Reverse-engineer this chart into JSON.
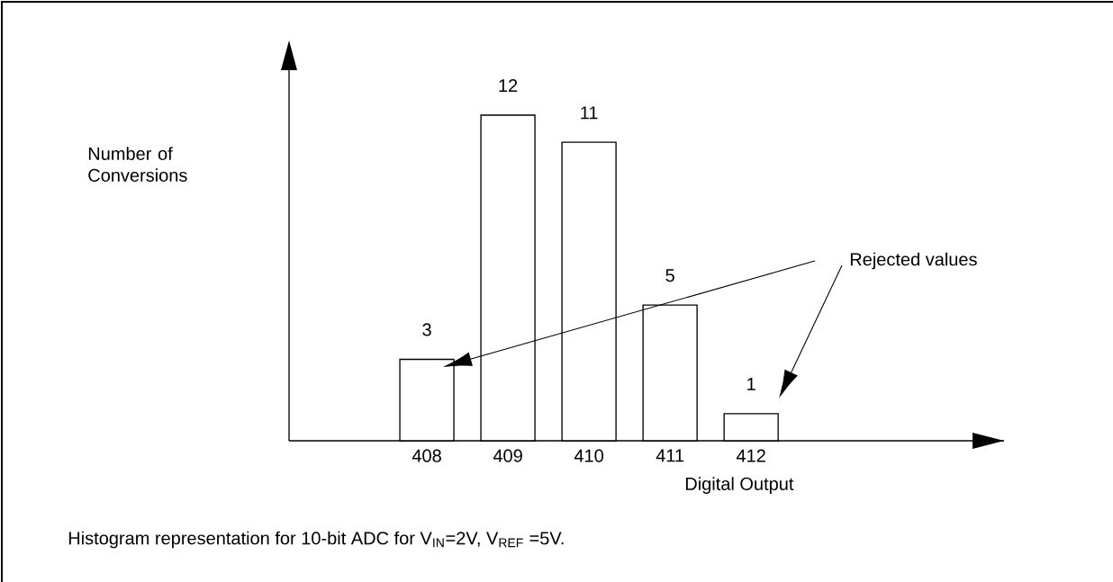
{
  "chart_data": {
    "type": "bar",
    "categories": [
      "408",
      "409",
      "410",
      "411",
      "412"
    ],
    "values": [
      3,
      12,
      11,
      5,
      1
    ],
    "color": "#ffffff",
    "data_labels": true,
    "tick_labels": "x",
    "xlabel": "Digital Output",
    "annotations": [
      "Rejected values",
      "Number of Conversions",
      "Histogram representation for 10-bit ADC for V$_{IN}$=2V, V$_{REF}$ =5V."
    ]
  }
}
